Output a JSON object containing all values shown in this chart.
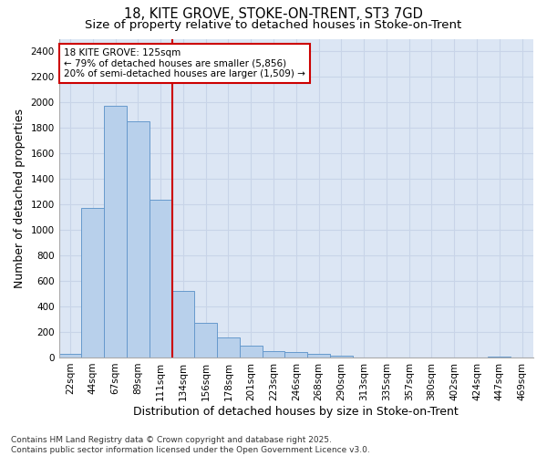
{
  "title": "18, KITE GROVE, STOKE-ON-TRENT, ST3 7GD",
  "subtitle": "Size of property relative to detached houses in Stoke-on-Trent",
  "xlabel": "Distribution of detached houses by size in Stoke-on-Trent",
  "ylabel": "Number of detached properties",
  "categories": [
    "22sqm",
    "44sqm",
    "67sqm",
    "89sqm",
    "111sqm",
    "134sqm",
    "156sqm",
    "178sqm",
    "201sqm",
    "223sqm",
    "246sqm",
    "268sqm",
    "290sqm",
    "313sqm",
    "335sqm",
    "357sqm",
    "380sqm",
    "402sqm",
    "424sqm",
    "447sqm",
    "469sqm"
  ],
  "values": [
    30,
    1175,
    1975,
    1850,
    1240,
    520,
    275,
    155,
    90,
    48,
    40,
    25,
    15,
    0,
    0,
    0,
    0,
    0,
    0,
    10,
    0
  ],
  "bar_color": "#b8d0eb",
  "bar_edge_color": "#6699cc",
  "vline_color": "#cc0000",
  "annotation_text_line1": "18 KITE GROVE: 125sqm",
  "annotation_text_line2": "← 79% of detached houses are smaller (5,856)",
  "annotation_text_line3": "20% of semi-detached houses are larger (1,509) →",
  "annotation_box_color": "white",
  "annotation_box_edge": "#cc0000",
  "ylim": [
    0,
    2500
  ],
  "yticks": [
    0,
    200,
    400,
    600,
    800,
    1000,
    1200,
    1400,
    1600,
    1800,
    2000,
    2200,
    2400
  ],
  "grid_color": "#c8d4e8",
  "background_color": "#dce6f4",
  "footnote": "Contains HM Land Registry data © Crown copyright and database right 2025.\nContains public sector information licensed under the Open Government Licence v3.0.",
  "title_fontsize": 10.5,
  "subtitle_fontsize": 9.5,
  "axis_label_fontsize": 9,
  "tick_fontsize": 7.5,
  "annotation_fontsize": 7.5,
  "footnote_fontsize": 6.5
}
